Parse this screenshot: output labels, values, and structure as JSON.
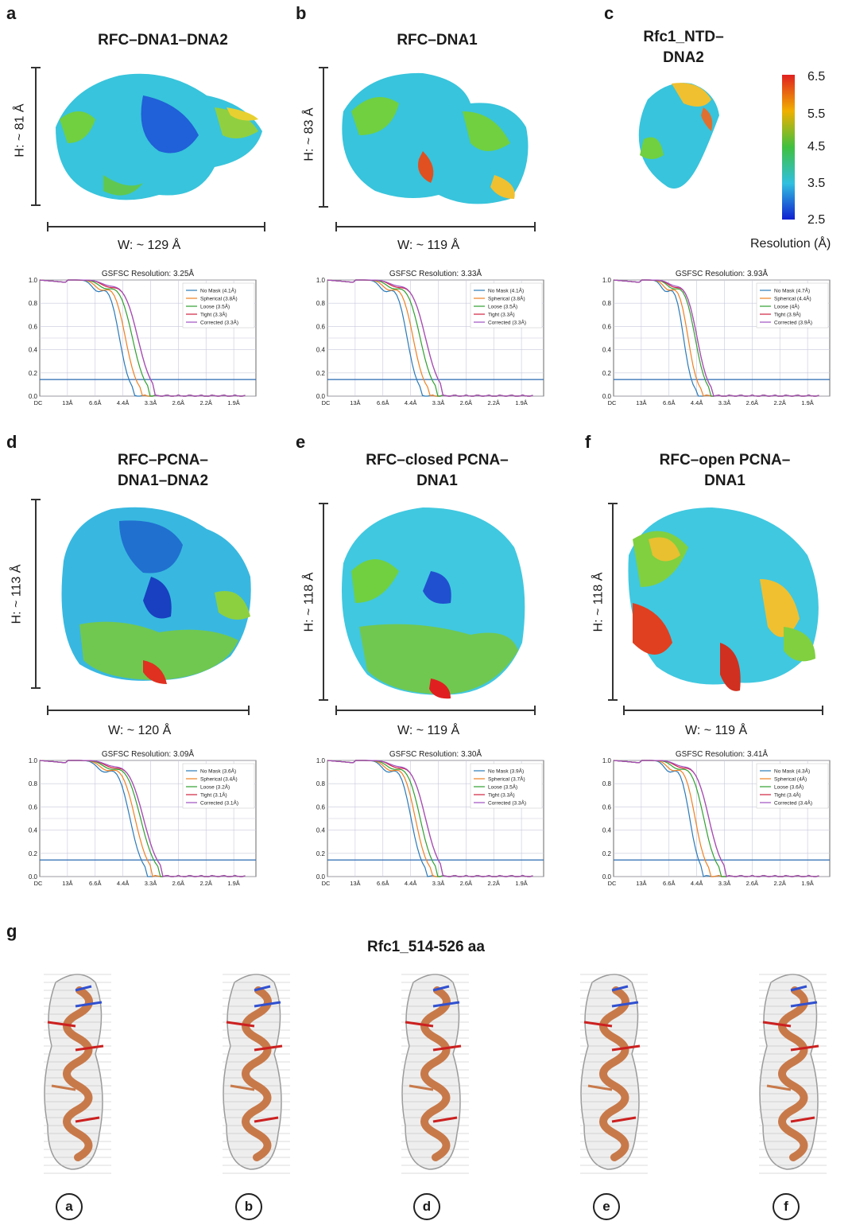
{
  "panels": {
    "a": {
      "letter": "a",
      "title": "RFC–DNA1–DNA2",
      "height": "H: ~ 81 Å",
      "width": "W: ~ 129 Å"
    },
    "b": {
      "letter": "b",
      "title": "RFC–DNA1",
      "height": "H: ~ 83 Å",
      "width": "W: ~ 119 Å"
    },
    "c": {
      "letter": "c",
      "title_line1": "Rfc1_NTD–",
      "title_line2": "DNA2"
    },
    "d": {
      "letter": "d",
      "title_line1": "RFC–PCNA–",
      "title_line2": "DNA1–DNA2",
      "height": "H: ~ 113 Å",
      "width": "W: ~ 120 Å"
    },
    "e": {
      "letter": "e",
      "title_line1": "RFC–closed PCNA–",
      "title_line2": "DNA1",
      "height": "H: ~ 118 Å",
      "width": "W: ~ 119 Å"
    },
    "f": {
      "letter": "f",
      "title_line1": "RFC–open PCNA–",
      "title_line2": "DNA1",
      "height": "H: ~ 118 Å",
      "width": "W: ~ 119 Å"
    },
    "g": {
      "letter": "g",
      "title": "Rfc1_514-526 aa",
      "labels": [
        "a",
        "b",
        "d",
        "e",
        "f"
      ]
    }
  },
  "colorbar": {
    "ticks": [
      "6.5",
      "5.5",
      "4.5",
      "3.5",
      "2.5"
    ],
    "label": "Resolution (Å)",
    "colors": [
      "#e02020",
      "#f0b000",
      "#40c040",
      "#30c0e0",
      "#1020d0"
    ]
  },
  "colors": {
    "map_base": "#30c8e0",
    "ribbon": "#c8794a",
    "mesh": "#9a9a9a"
  },
  "chart_data": [
    {
      "type": "line",
      "panel": "a",
      "title": "GSFSC Resolution: 3.25Å",
      "x_ticks": [
        "DC",
        "13Å",
        "6.6Å",
        "4.4Å",
        "3.3Å",
        "2.6Å",
        "2.2Å",
        "1.9Å"
      ],
      "y_ticks": [
        "1.0",
        "0.8",
        "0.6",
        "0.4",
        "0.2",
        "0.0"
      ],
      "ylim": [
        0,
        1
      ],
      "thresholds": [
        0.143,
        0.5
      ],
      "series": [
        {
          "name": "No Mask (4.1Å)",
          "color": "#2a7ab8",
          "cutoff": 4.1
        },
        {
          "name": "Spherical (3.8Å)",
          "color": "#f08020",
          "cutoff": 3.8
        },
        {
          "name": "Loose (3.5Å)",
          "color": "#30a030",
          "cutoff": 3.5
        },
        {
          "name": "Tight (3.3Å)",
          "color": "#d02040",
          "cutoff": 3.3
        },
        {
          "name": "Corrected (3.3Å)",
          "color": "#a050c0",
          "cutoff": 3.3
        }
      ]
    },
    {
      "type": "line",
      "panel": "b",
      "title": "GSFSC Resolution: 3.33Å",
      "x_ticks": [
        "DC",
        "13Å",
        "6.6Å",
        "4.4Å",
        "3.3Å",
        "2.6Å",
        "2.2Å",
        "1.9Å"
      ],
      "y_ticks": [
        "1.0",
        "0.8",
        "0.6",
        "0.4",
        "0.2",
        "0.0"
      ],
      "ylim": [
        0,
        1
      ],
      "thresholds": [
        0.143,
        0.5
      ],
      "series": [
        {
          "name": "No Mask (4.1Å)",
          "color": "#2a7ab8",
          "cutoff": 4.1
        },
        {
          "name": "Spherical (3.8Å)",
          "color": "#f08020",
          "cutoff": 3.8
        },
        {
          "name": "Loose (3.5Å)",
          "color": "#30a030",
          "cutoff": 3.5
        },
        {
          "name": "Tight (3.3Å)",
          "color": "#d02040",
          "cutoff": 3.3
        },
        {
          "name": "Corrected (3.3Å)",
          "color": "#a050c0",
          "cutoff": 3.3
        }
      ]
    },
    {
      "type": "line",
      "panel": "c",
      "title": "GSFSC Resolution: 3.93Å",
      "x_ticks": [
        "DC",
        "13Å",
        "6.6Å",
        "4.4Å",
        "3.3Å",
        "2.6Å",
        "2.2Å",
        "1.9Å"
      ],
      "y_ticks": [
        "1.0",
        "0.8",
        "0.6",
        "0.4",
        "0.2",
        "0.0"
      ],
      "ylim": [
        0,
        1
      ],
      "thresholds": [
        0.143,
        0.5
      ],
      "series": [
        {
          "name": "No Mask (4.7Å)",
          "color": "#2a7ab8",
          "cutoff": 4.7
        },
        {
          "name": "Spherical (4.4Å)",
          "color": "#f08020",
          "cutoff": 4.4
        },
        {
          "name": "Loose (4Å)",
          "color": "#30a030",
          "cutoff": 4.0
        },
        {
          "name": "Tight (3.9Å)",
          "color": "#d02040",
          "cutoff": 3.9
        },
        {
          "name": "Corrected (3.9Å)",
          "color": "#a050c0",
          "cutoff": 3.9
        }
      ]
    },
    {
      "type": "line",
      "panel": "d",
      "title": "GSFSC Resolution: 3.09Å",
      "x_ticks": [
        "DC",
        "13Å",
        "6.6Å",
        "4.4Å",
        "3.3Å",
        "2.6Å",
        "2.2Å",
        "1.9Å"
      ],
      "y_ticks": [
        "1.0",
        "0.8",
        "0.6",
        "0.4",
        "0.2",
        "0.0"
      ],
      "ylim": [
        0,
        1
      ],
      "thresholds": [
        0.143,
        0.5
      ],
      "series": [
        {
          "name": "No Mask (3.6Å)",
          "color": "#2a7ab8",
          "cutoff": 3.6
        },
        {
          "name": "Spherical (3.4Å)",
          "color": "#f08020",
          "cutoff": 3.4
        },
        {
          "name": "Loose (3.2Å)",
          "color": "#30a030",
          "cutoff": 3.2
        },
        {
          "name": "Tight (3.1Å)",
          "color": "#d02040",
          "cutoff": 3.1
        },
        {
          "name": "Corrected (3.1Å)",
          "color": "#a050c0",
          "cutoff": 3.1
        }
      ]
    },
    {
      "type": "line",
      "panel": "e",
      "title": "GSFSC Resolution: 3.30Å",
      "x_ticks": [
        "DC",
        "13Å",
        "6.6Å",
        "4.4Å",
        "3.3Å",
        "2.6Å",
        "2.2Å",
        "1.9Å"
      ],
      "y_ticks": [
        "1.0",
        "0.8",
        "0.6",
        "0.4",
        "0.2",
        "0.0"
      ],
      "ylim": [
        0,
        1
      ],
      "thresholds": [
        0.143,
        0.5
      ],
      "series": [
        {
          "name": "No Mask (3.9Å)",
          "color": "#2a7ab8",
          "cutoff": 3.9
        },
        {
          "name": "Spherical (3.7Å)",
          "color": "#f08020",
          "cutoff": 3.7
        },
        {
          "name": "Loose (3.5Å)",
          "color": "#30a030",
          "cutoff": 3.5
        },
        {
          "name": "Tight (3.3Å)",
          "color": "#d02040",
          "cutoff": 3.3
        },
        {
          "name": "Corrected (3.3Å)",
          "color": "#a050c0",
          "cutoff": 3.3
        }
      ]
    },
    {
      "type": "line",
      "panel": "f",
      "title": "GSFSC Resolution: 3.41Å",
      "x_ticks": [
        "DC",
        "13Å",
        "6.6Å",
        "4.4Å",
        "3.3Å",
        "2.6Å",
        "2.2Å",
        "1.9Å"
      ],
      "y_ticks": [
        "1.0",
        "0.8",
        "0.6",
        "0.4",
        "0.2",
        "0.0"
      ],
      "ylim": [
        0,
        1
      ],
      "thresholds": [
        0.143,
        0.5
      ],
      "series": [
        {
          "name": "No Mask (4.3Å)",
          "color": "#2a7ab8",
          "cutoff": 4.3
        },
        {
          "name": "Spherical (4Å)",
          "color": "#f08020",
          "cutoff": 4.0
        },
        {
          "name": "Loose (3.6Å)",
          "color": "#30a030",
          "cutoff": 3.6
        },
        {
          "name": "Tight (3.4Å)",
          "color": "#d02040",
          "cutoff": 3.4
        },
        {
          "name": "Corrected (3.4Å)",
          "color": "#a050c0",
          "cutoff": 3.4
        }
      ]
    }
  ]
}
